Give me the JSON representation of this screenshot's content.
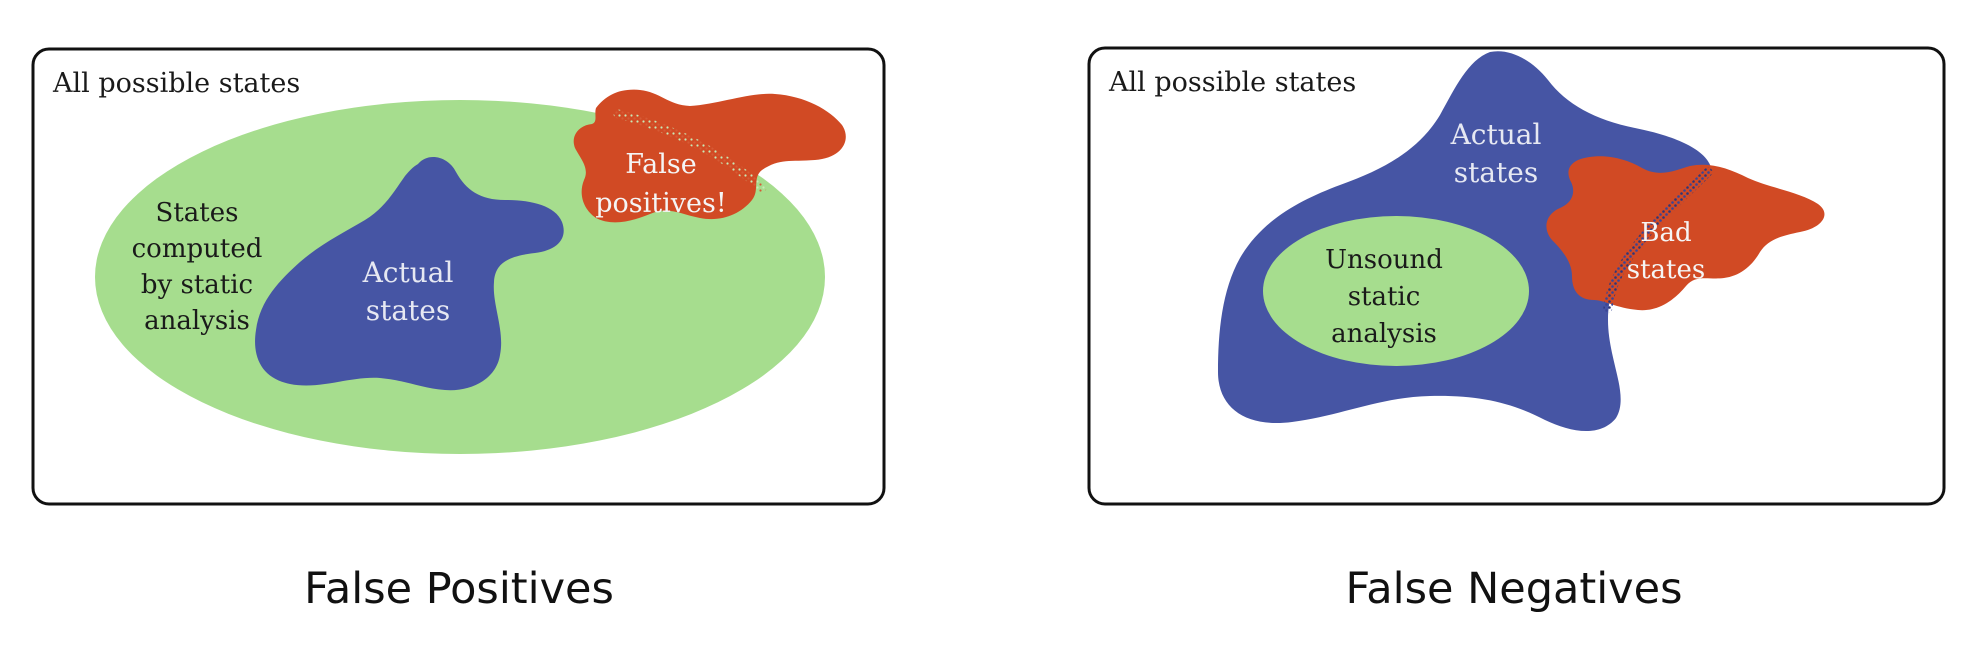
{
  "colors": {
    "frame": "#111111",
    "green_region": "#a6dd8e",
    "blue_region": "#4655a4",
    "red_region": "#d14a24",
    "dark_text": "#1a1a1a",
    "light_text": "#f2f2f2",
    "caption_text": "#111111"
  },
  "left_panel": {
    "frame_label": "All possible states",
    "green_label": [
      "States",
      "computed",
      "by static",
      "analysis"
    ],
    "blue_label": [
      "Actual",
      "states"
    ],
    "red_label": [
      "False",
      "positives!"
    ],
    "caption": "False Positives"
  },
  "right_panel": {
    "frame_label": "All possible states",
    "blue_label": [
      "Actual",
      "states"
    ],
    "green_label": [
      "Unsound",
      "static",
      "analysis"
    ],
    "red_label": [
      "Bad",
      "states"
    ],
    "caption": "False Negatives"
  }
}
